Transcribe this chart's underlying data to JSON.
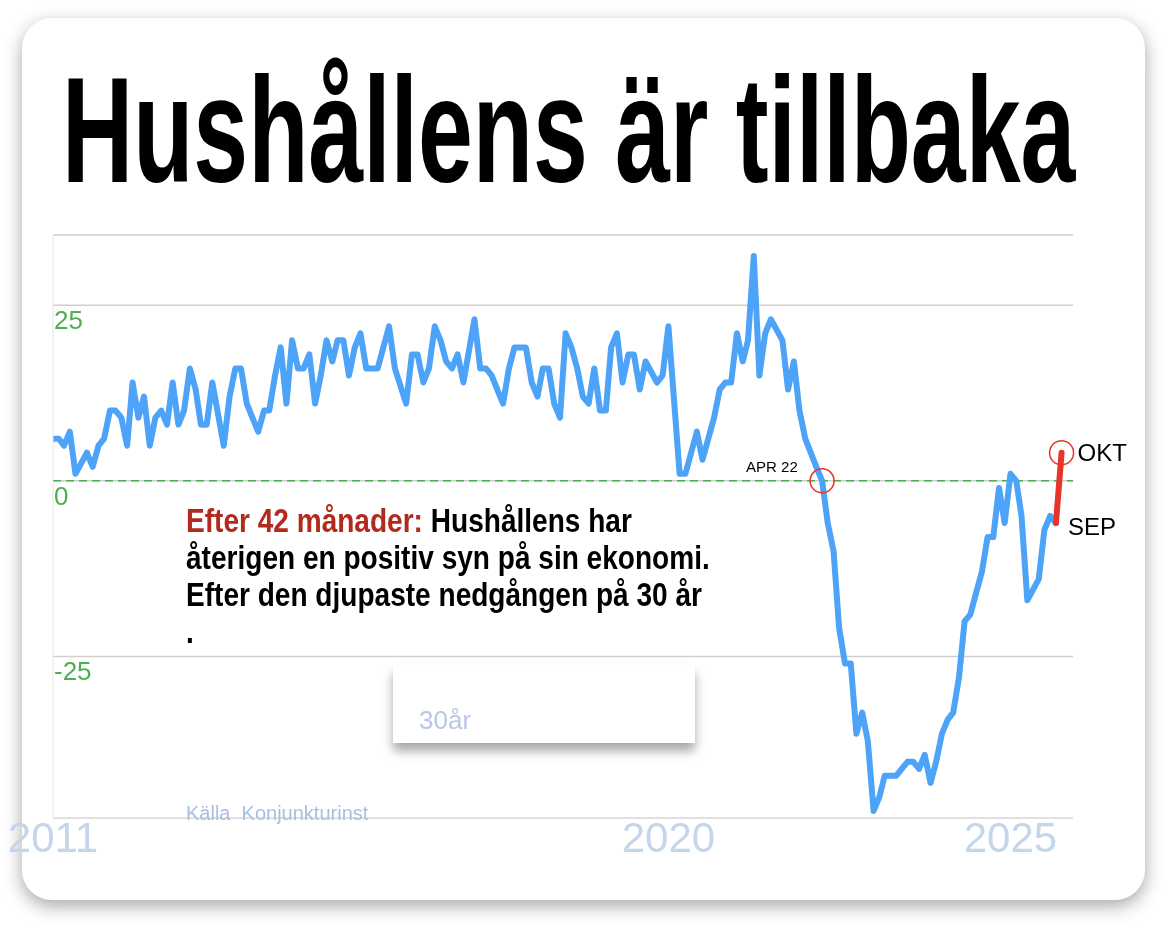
{
  "chart_data": {
    "type": "line",
    "title": "Hushållens är tillbaka",
    "x": [
      "2011-01",
      "2011-02",
      "2011-03",
      "2011-04",
      "2011-05",
      "2011-07",
      "2011-08",
      "2011-09",
      "2011-10",
      "2011-11",
      "2011-12",
      "2012-01",
      "2012-02",
      "2012-03",
      "2012-04",
      "2012-05",
      "2012-06",
      "2012-07",
      "2012-08",
      "2012-09",
      "2012-10",
      "2012-11",
      "2012-12",
      "2013-01",
      "2013-02",
      "2013-03",
      "2013-04",
      "2013-05",
      "2013-07",
      "2013-08",
      "2013-09",
      "2013-10",
      "2013-11",
      "2013-12",
      "2014-01",
      "2014-02",
      "2014-03",
      "2014-04",
      "2014-05",
      "2014-06",
      "2014-07",
      "2014-08",
      "2014-09",
      "2014-10",
      "2014-11",
      "2014-12",
      "2015-01",
      "2015-02",
      "2015-03",
      "2015-04",
      "2015-05",
      "2015-06",
      "2015-07",
      "2015-08",
      "2015-10",
      "2015-12",
      "2016-01",
      "2016-03",
      "2016-04",
      "2016-05",
      "2016-06",
      "2016-07",
      "2016-08",
      "2016-09",
      "2016-10",
      "2016-11",
      "2016-12",
      "2017-01",
      "2017-03",
      "2017-04",
      "2017-05",
      "2017-06",
      "2017-07",
      "2017-08",
      "2017-09",
      "2017-10",
      "2017-12",
      "2018-01",
      "2018-02",
      "2018-03",
      "2018-04",
      "2018-05",
      "2018-06",
      "2018-07",
      "2018-08",
      "2018-09",
      "2018-10",
      "2018-11",
      "2018-12",
      "2019-01",
      "2019-02",
      "2019-03",
      "2019-04",
      "2019-05",
      "2019-06",
      "2019-07",
      "2019-08",
      "2019-09",
      "2019-11",
      "2019-12",
      "2020-01",
      "2020-03",
      "2020-04",
      "2020-06",
      "2020-07",
      "2020-09",
      "2020-10",
      "2020-11",
      "2020-12",
      "2021-01",
      "2021-02",
      "2021-03",
      "2021-04",
      "2021-05",
      "2021-06",
      "2021-07",
      "2021-09",
      "2021-10",
      "2021-11",
      "2021-12",
      "2022-01",
      "2022-03",
      "2022-04",
      "2022-05",
      "2022-06",
      "2022-07",
      "2022-08",
      "2022-09",
      "2022-10",
      "2022-11",
      "2022-12",
      "2023-01",
      "2023-02",
      "2023-03",
      "2023-05",
      "2023-07",
      "2023-08",
      "2023-09",
      "2023-10",
      "2023-11",
      "2023-12",
      "2024-01",
      "2024-02",
      "2024-03",
      "2024-04",
      "2024-05",
      "2024-06",
      "2024-07",
      "2024-08",
      "2024-09",
      "2024-10",
      "2024-11",
      "2024-12",
      "2025-01",
      "2025-02",
      "2025-03",
      "2025-04",
      "2025-06",
      "2025-07",
      "2025-08",
      "2025-09"
    ],
    "series": [
      {
        "color": "#4da3f7",
        "values": [
          6,
          6,
          5,
          7,
          1,
          4,
          2,
          5,
          6,
          10,
          10,
          9,
          5,
          14,
          9,
          12,
          5,
          9,
          10,
          8,
          14,
          8,
          10,
          16,
          13,
          8,
          8,
          14,
          5,
          12,
          16,
          16,
          11,
          9,
          7,
          10,
          10,
          15,
          19,
          11,
          20,
          16,
          16,
          18,
          11,
          15,
          20,
          17,
          20,
          20,
          15,
          19,
          21,
          16,
          16,
          22,
          16,
          11,
          18,
          18,
          14,
          16,
          22,
          20,
          17,
          16,
          18,
          14,
          23,
          16,
          16,
          15,
          13,
          11,
          16,
          19,
          19,
          14,
          12,
          16,
          16,
          11,
          9,
          21,
          19,
          16,
          12,
          11,
          16,
          10,
          10,
          19,
          21,
          14,
          18,
          18,
          13,
          17,
          14,
          15,
          22,
          1,
          1,
          7,
          3,
          9,
          13,
          14,
          14,
          21,
          17,
          20,
          32,
          15,
          21,
          23,
          20,
          13,
          17,
          10,
          6,
          2,
          0,
          -6,
          -10,
          -21,
          -26,
          -26,
          -36,
          -33,
          -37,
          -47,
          -45,
          -42,
          -42,
          -40,
          -40,
          -41,
          -39,
          -43,
          -40,
          -36,
          -34,
          -33,
          -28,
          -20,
          -19,
          -16,
          -13,
          -8,
          -8,
          -1,
          -6,
          1,
          0,
          -5,
          -17,
          -14,
          -7,
          -5,
          -6
        ]
      },
      {
        "color": "#e8342a",
        "x": [
          "2025-09",
          "2025-10"
        ],
        "values": [
          -6,
          4
        ]
      }
    ],
    "xlim": [
      "2011-01",
      "2025-12"
    ],
    "xticks": [
      {
        "value": "2011-01",
        "label": "2011"
      },
      {
        "value": "2020-01",
        "label": "2020"
      },
      {
        "value": "2025-01",
        "label": "2025"
      }
    ],
    "ylim": [
      -48,
      35
    ],
    "yticks": [
      -25,
      0,
      25
    ],
    "grid": "y",
    "ref_lines": [
      {
        "axis": "y",
        "value": 0,
        "color": "#4caf50",
        "line_style": "dashed"
      }
    ],
    "annotations": [
      "Efter 42 månader:",
      "Hushållens har återigen en positiv syn på sin ekonomi. Efter den djupaste nedgången på 30 år",
      ".",
      {
        "text": "APR 22",
        "x": "2022-04",
        "y": 0
      },
      {
        "text": "OKT",
        "x": "2025-10",
        "y": 4
      },
      {
        "text": "SEP",
        "x": "2025-09",
        "y": -6
      },
      "Källa  Konjunkturinst",
      "30år"
    ]
  }
}
